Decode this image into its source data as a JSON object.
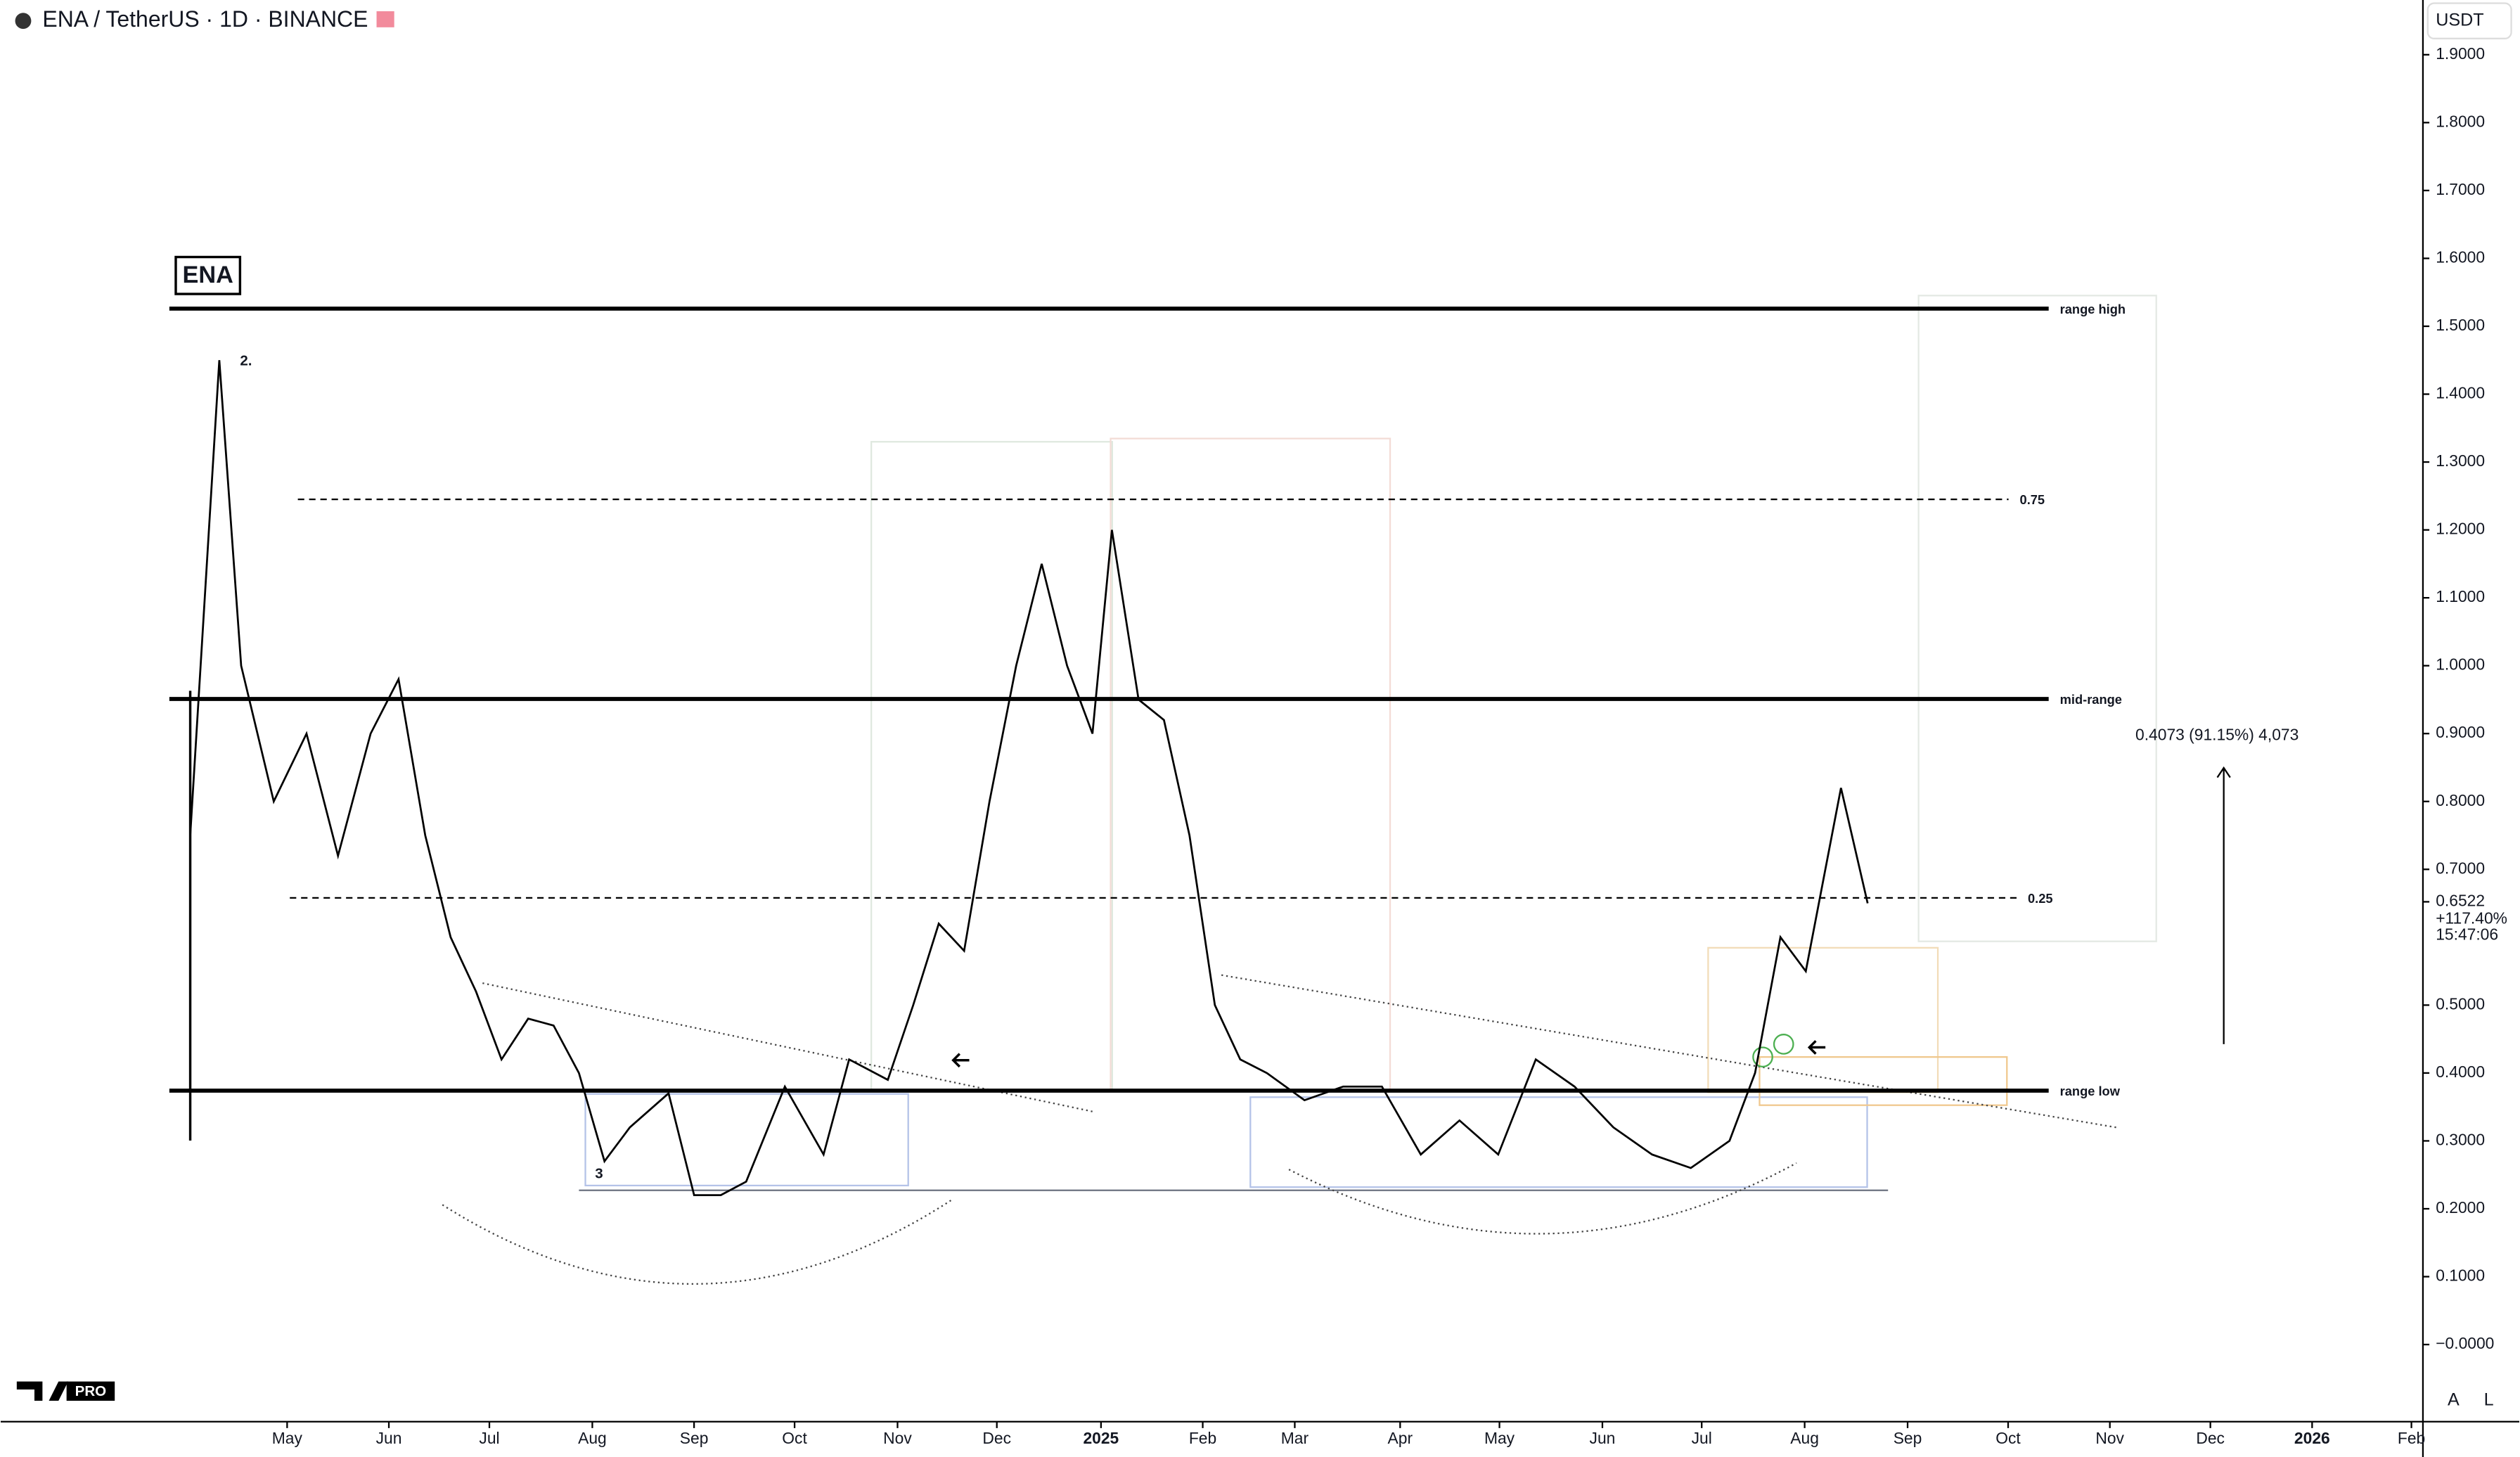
{
  "chart_data": {
    "type": "line",
    "title": "ENA / TetherUS · 1D · BINANCE",
    "color": "#000000",
    "x": [
      2024.248,
      2024.272,
      2024.29,
      2024.317,
      2024.344,
      2024.37,
      2024.397,
      2024.42,
      2024.442,
      2024.463,
      2024.484,
      2024.505,
      2024.527,
      2024.548,
      2024.569,
      2024.59,
      2024.611,
      2024.643,
      2024.664,
      2024.686,
      2024.707,
      2024.739,
      2024.771,
      2024.792,
      2024.824,
      2024.845,
      2024.866,
      2024.887,
      2024.908,
      2024.93,
      2024.951,
      2024.972,
      2024.993,
      2025.009,
      2025.031,
      2025.052,
      2025.073,
      2025.094,
      2025.115,
      2025.137,
      2025.168,
      2025.2,
      2025.232,
      2025.264,
      2025.296,
      2025.328,
      2025.359,
      2025.391,
      2025.423,
      2025.455,
      2025.487,
      2025.519,
      2025.54,
      2025.561,
      2025.582,
      2025.611,
      2025.633
    ],
    "values": [
      0.75,
      1.45,
      1.0,
      0.8,
      0.9,
      0.72,
      0.9,
      0.98,
      0.75,
      0.6,
      0.52,
      0.42,
      0.48,
      0.47,
      0.4,
      0.27,
      0.32,
      0.37,
      0.22,
      0.22,
      0.24,
      0.38,
      0.28,
      0.42,
      0.39,
      0.5,
      0.62,
      0.58,
      0.8,
      1.0,
      1.15,
      1.0,
      0.9,
      1.2,
      0.95,
      0.92,
      0.75,
      0.5,
      0.42,
      0.4,
      0.36,
      0.38,
      0.38,
      0.28,
      0.33,
      0.28,
      0.42,
      0.38,
      0.32,
      0.28,
      0.26,
      0.3,
      0.4,
      0.6,
      0.55,
      0.82,
      0.65
    ],
    "xlim": [
      2024.0915,
      2026.0915
    ],
    "ylim": [
      -0.1136,
      1.9806
    ],
    "xticks": [
      {
        "value": 2024.328,
        "label": "May"
      },
      {
        "value": 2024.412,
        "label": "Jun"
      },
      {
        "value": 2024.495,
        "label": "Jul"
      },
      {
        "value": 2024.58,
        "label": "Aug"
      },
      {
        "value": 2024.664,
        "label": "Sep"
      },
      {
        "value": 2024.747,
        "label": "Oct"
      },
      {
        "value": 2024.832,
        "label": "Nov"
      },
      {
        "value": 2024.914,
        "label": "Dec"
      },
      2025,
      {
        "value": 2025.084,
        "label": "Feb"
      },
      {
        "value": 2025.16,
        "label": "Mar"
      },
      {
        "value": 2025.247,
        "label": "Apr"
      },
      {
        "value": 2025.329,
        "label": "May"
      },
      {
        "value": 2025.414,
        "label": "Jun"
      },
      {
        "value": 2025.496,
        "label": "Jul"
      },
      {
        "value": 2025.581,
        "label": "Aug"
      },
      {
        "value": 2025.666,
        "label": "Sep"
      },
      {
        "value": 2025.749,
        "label": "Oct"
      },
      {
        "value": 2025.833,
        "label": "Nov"
      },
      {
        "value": 2025.916,
        "label": "Dec"
      },
      2026,
      {
        "value": 2026.082,
        "label": "Feb"
      }
    ],
    "yticks": [
      {
        "value": 0,
        "label": "−0.0000"
      },
      {
        "value": 0.1,
        "label": "0.1000"
      },
      {
        "value": 0.2,
        "label": "0.2000"
      },
      {
        "value": 0.3,
        "label": "0.3000"
      },
      {
        "value": 0.4,
        "label": "0.4000"
      },
      {
        "value": 0.5,
        "label": "0.5000"
      },
      {
        "value": 0.7,
        "label": "0.7000"
      },
      {
        "value": 0.8,
        "label": "0.8000"
      },
      {
        "value": 0.9,
        "label": "0.9000"
      },
      {
        "value": 1.0,
        "label": "1.0000"
      },
      {
        "value": 1.1,
        "label": "1.1000"
      },
      {
        "value": 1.2,
        "label": "1.2000"
      },
      {
        "value": 1.3,
        "label": "1.3000"
      },
      {
        "value": 1.4,
        "label": "1.4000"
      },
      {
        "value": 1.5,
        "label": "1.5000"
      },
      {
        "value": 1.6,
        "label": "1.6000"
      },
      {
        "value": 1.7,
        "label": "1.7000"
      },
      {
        "value": 1.8,
        "label": "1.8000"
      },
      {
        "value": 1.9,
        "label": "1.9000"
      }
    ],
    "levels": [
      {
        "label": "range high",
        "value": 1.526,
        "style": "solid"
      },
      {
        "label": "0.75",
        "value": 1.245,
        "style": "dashed"
      },
      {
        "label": "mid-range",
        "value": 0.951,
        "style": "solid"
      },
      {
        "label": "0.25",
        "value": 0.658,
        "style": "dashed"
      },
      {
        "label": "range low",
        "value": 0.374,
        "style": "solid"
      }
    ],
    "last_price": 0.6522,
    "change": "+117.40%",
    "countdown": "15:47:06",
    "currency": "USDT",
    "symbol_label": "ENA",
    "wave_labels": [
      "2.",
      "3"
    ],
    "measure": "0.4073 (91.15%) 4,073",
    "scale_buttons": [
      "A",
      "L"
    ],
    "badge": "PRO"
  }
}
